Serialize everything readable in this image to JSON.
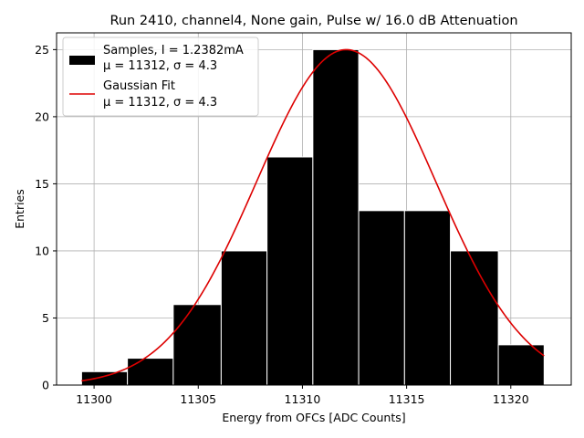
{
  "chart_data": {
    "type": "bar",
    "title": "Run 2410, channel4, None gain, Pulse w/ 16.0 dB Attenuation",
    "xlabel": "Energy from OFCs [ADC Counts]",
    "ylabel": "Entries",
    "xlim": [
      11298.2,
      11322.9
    ],
    "ylim": [
      0,
      26.25
    ],
    "xticks": [
      11300,
      11305,
      11310,
      11315,
      11320
    ],
    "yticks": [
      0,
      5,
      10,
      15,
      20,
      25
    ],
    "grid": true,
    "legend_position": "top-left",
    "histogram": {
      "name": "Samples, I = 1.2382mA",
      "stats": "μ = 11312, σ = 4.3",
      "color": "#000000",
      "edgecolor": "#ffffff",
      "bin_edges": [
        11299.4,
        11301.6,
        11303.8,
        11306.1,
        11308.3,
        11310.5,
        11312.7,
        11314.9,
        11317.1,
        11319.4,
        11321.6
      ],
      "counts": [
        1,
        2,
        6,
        10,
        17,
        25,
        13,
        13,
        10,
        3
      ]
    },
    "fit": {
      "name": "Gaussian Fit",
      "stats": "μ = 11312, σ = 4.3",
      "color": "#dd0000",
      "type": "gaussian",
      "mu": 11312.1,
      "sigma": 4.3,
      "amplitude": 25.0,
      "x_range": [
        11299.4,
        11321.6
      ]
    }
  }
}
